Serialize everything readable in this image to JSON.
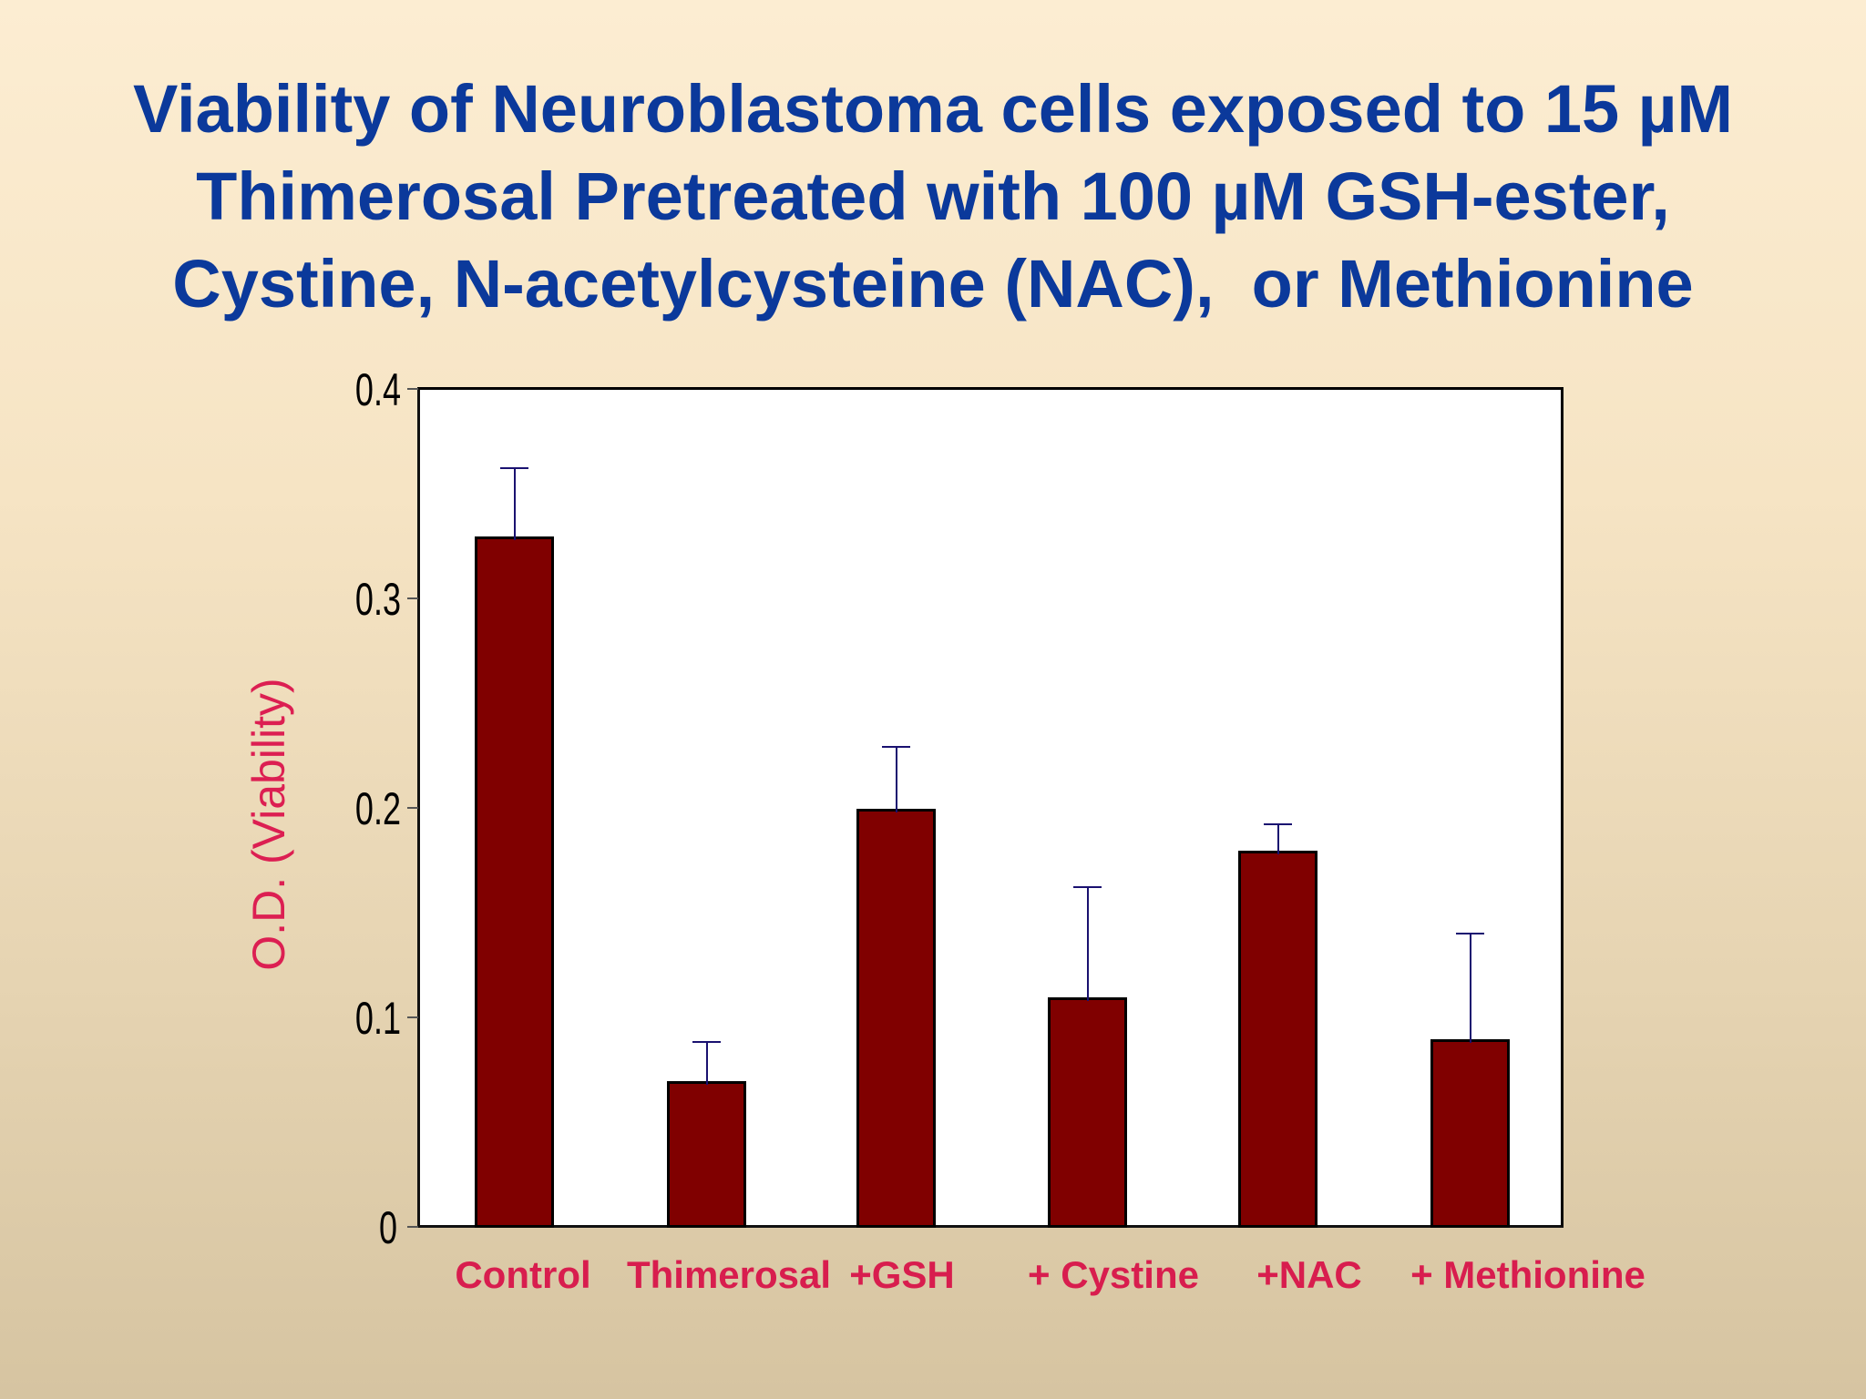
{
  "slide": {
    "title_lines": [
      "Viability of Neuroblastoma cells exposed to 15 µM",
      "Thimerosal Pretreated with 100 µM GSH-ester,",
      "Cystine, N-acetylcysteine (NAC),  or Methionine"
    ],
    "colors": {
      "title": "#0b399b",
      "axis_labels": "#d81d4e",
      "bar_fill": "#800000",
      "error_bar": "#1a1170",
      "plot_bg": "#ffffff",
      "background_top": "#fcedd2",
      "background_bottom": "#d6c4a1"
    }
  },
  "chart_data": {
    "type": "bar",
    "title": "Viability of Neuroblastoma cells exposed to 15 µM Thimerosal Pretreated with 100 µM GSH-ester, Cystine, N-acetylcysteine (NAC), or Methionine",
    "xlabel": "",
    "ylabel": "O.D. (Viability)",
    "categories": [
      "Control",
      "Thimerosal",
      "+GSH",
      "+ Cystine",
      "+NAC",
      "+ Methionine"
    ],
    "values": [
      0.33,
      0.07,
      0.2,
      0.11,
      0.18,
      0.09
    ],
    "error_upper": [
      0.033,
      0.019,
      0.03,
      0.053,
      0.013,
      0.051
    ],
    "ylim": [
      0,
      0.4
    ],
    "yticks": [
      "0",
      "0.1",
      "0.2",
      "0.3",
      "0.4"
    ],
    "grid": false,
    "legend": null
  }
}
